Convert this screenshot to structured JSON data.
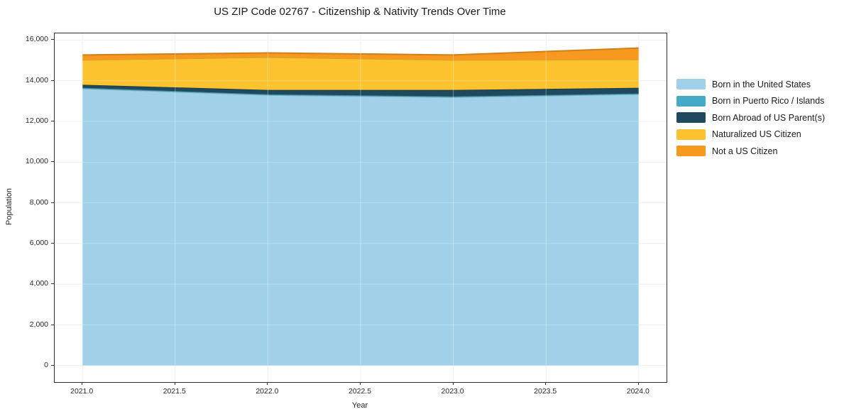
{
  "chart_data": {
    "type": "area",
    "stacked": true,
    "title": "US ZIP Code 02767 - Citizenship & Nativity Trends Over Time",
    "xlabel": "Year",
    "ylabel": "Population",
    "x": [
      2021,
      2022,
      2023,
      2024
    ],
    "series": [
      {
        "name": "Born in the United States",
        "color": "#A0D1E8",
        "values": [
          13620,
          13300,
          13195,
          13340
        ]
      },
      {
        "name": "Born in Puerto Rico / Islands",
        "color": "#45AAC6",
        "values": [
          35,
          35,
          35,
          35
        ]
      },
      {
        "name": "Born Abroad of US Parent(s)",
        "color": "#1F4A5E",
        "values": [
          150,
          215,
          320,
          280
        ]
      },
      {
        "name": "Naturalized US Citizen",
        "color": "#FDC32E",
        "values": [
          1220,
          1610,
          1475,
          1390
        ]
      },
      {
        "name": "Not a US Citizen",
        "color": "#F7981F",
        "values": [
          245,
          210,
          245,
          565
        ]
      }
    ],
    "xlim": [
      2020.85,
      2024.15
    ],
    "ylim": [
      -810,
      16330
    ],
    "x_tick_values": [
      2021.0,
      2021.5,
      2022.0,
      2022.5,
      2023.0,
      2023.5,
      2024.0
    ],
    "x_tick_labels": [
      "2021.0",
      "2021.5",
      "2022.0",
      "2022.5",
      "2023.0",
      "2023.5",
      "2024.0"
    ],
    "y_tick_values": [
      0,
      2000,
      4000,
      6000,
      8000,
      10000,
      12000,
      14000,
      16000
    ],
    "y_tick_labels": [
      "0",
      "2,000",
      "4,000",
      "6,000",
      "8,000",
      "10,000",
      "12,000",
      "14,000",
      "16,000"
    ],
    "grid": true,
    "grid_color": "#e8e8e8",
    "spine_color": "#2e2e2e",
    "legend_position": "right"
  }
}
